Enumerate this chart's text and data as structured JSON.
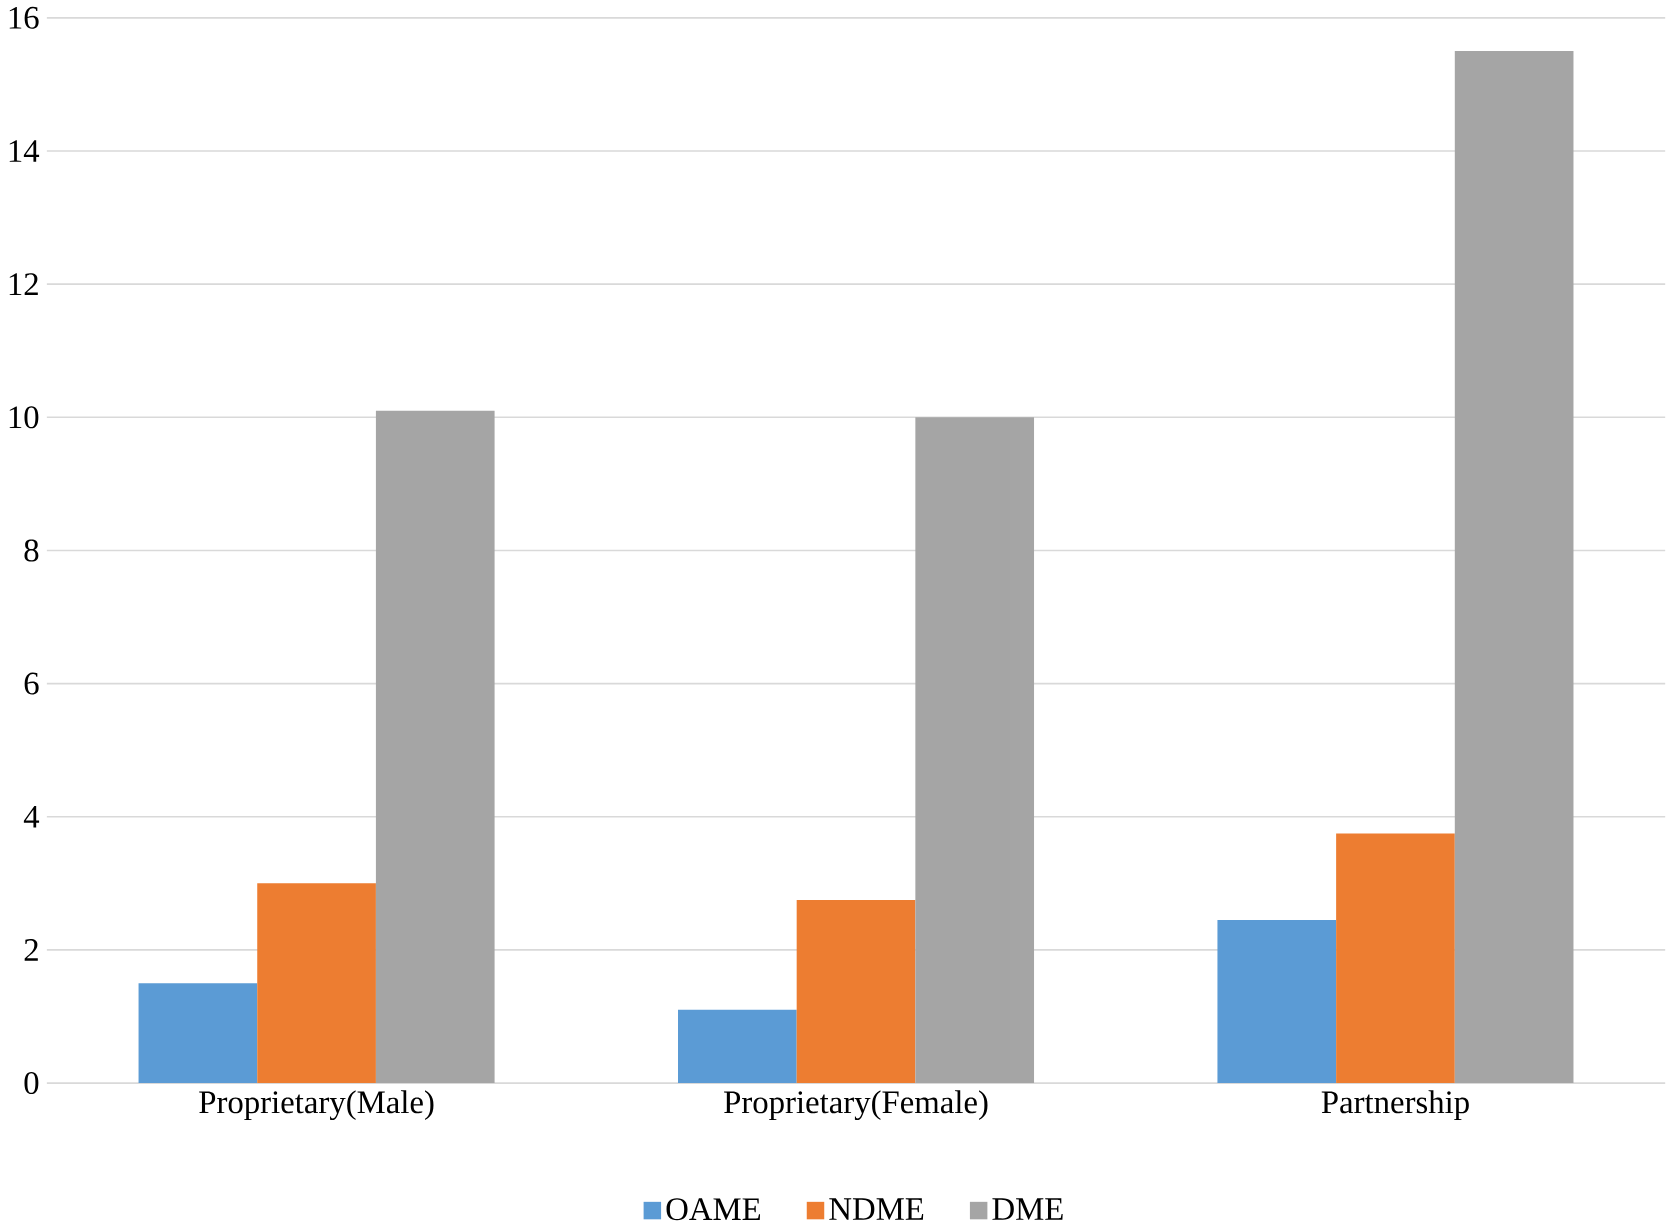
{
  "chart_data": {
    "type": "bar",
    "categories": [
      "Proprietary(Male)",
      "Proprietary(Female)",
      "Partnership"
    ],
    "series": [
      {
        "name": "OAME",
        "color": "#5b9bd5",
        "values": [
          1.5,
          1.1,
          2.45
        ]
      },
      {
        "name": "NDME",
        "color": "#ed7d31",
        "values": [
          3.0,
          2.75,
          3.75
        ]
      },
      {
        "name": "DME",
        "color": "#a5a5a5",
        "values": [
          10.1,
          10.0,
          15.5
        ]
      }
    ],
    "ylim": [
      0,
      16
    ],
    "yticks": [
      0,
      2,
      4,
      6,
      8,
      10,
      12,
      14,
      16
    ],
    "grid": "y",
    "legend": "bottom"
  }
}
